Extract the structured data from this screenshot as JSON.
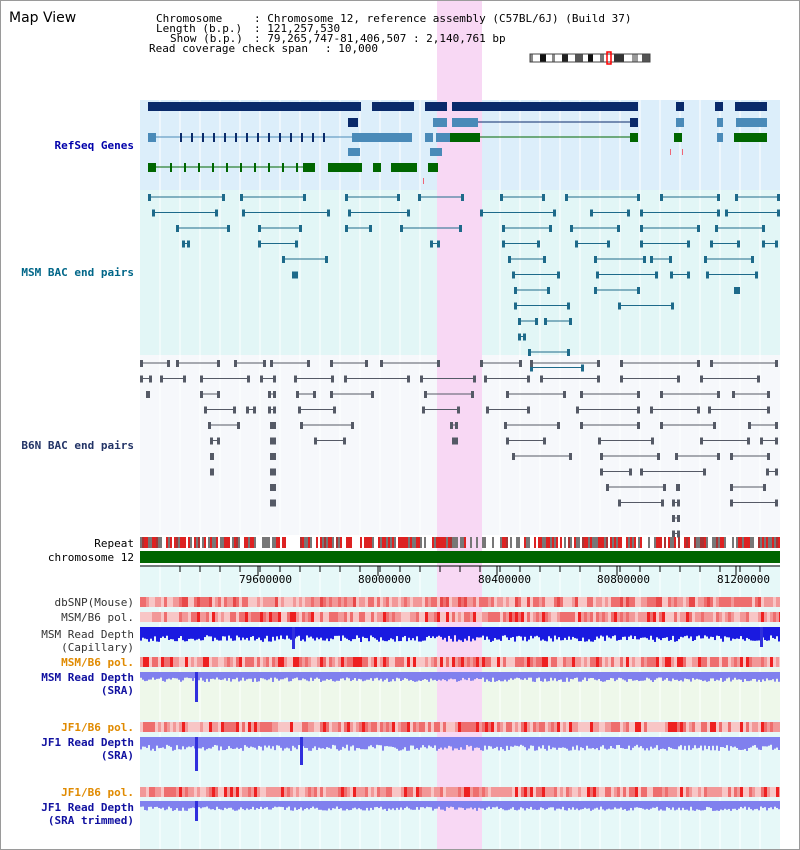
{
  "title": "Map View",
  "header": {
    "chromosome_label": "Chromosome    ",
    "chromosome_value": ": Chromosome 12, reference assembly (C57BL/6J) (Build 37)",
    "length_label": "Length (b.p.)",
    "length_value": ": 121,257,530",
    "show_label": "Show (b.p.)",
    "show_value": ": 79,265,747-81,406,507 : 2,140,761 bp",
    "coverage_label": "Read coverage check span",
    "coverage_value": ": 10,000"
  },
  "tracks": {
    "refseq": "RefSeq Genes",
    "msm_bac": "MSM BAC end pairs",
    "b6n_bac": "B6N BAC end pairs",
    "repeat": "Repeat",
    "chromosome": "chromosome 12",
    "dbsnp": "dbSNP(Mouse)",
    "msm_b6_pol": "MSM/B6 pol.",
    "msm_depth_cap_1": "MSM Read Depth",
    "msm_depth_cap_2": "(Capillary)",
    "msm_b6_pol_2": "MSM/B6 pol.",
    "msm_depth_sra_1": "MSM Read Depth",
    "msm_depth_sra_2": "(SRA)",
    "jf1_b6_pol": "JF1/B6 pol.",
    "jf1_depth_sra_1": "JF1 Read Depth",
    "jf1_depth_sra_2": "(SRA)",
    "jf1_b6_pol_2": "JF1/B6 pol.",
    "jf1_depth_trim_1": "JF1 Read Depth",
    "jf1_depth_trim_2": "(SRA trimmed)"
  },
  "scale": {
    "ticks": [
      "79600000",
      "80000000",
      "80400000",
      "80800000",
      "81200000"
    ]
  },
  "colors": {
    "refseq_label": "#0000aa",
    "msm_bac_label": "#006688",
    "b6n_bac_label": "#223366",
    "orange_label": "#e08a00",
    "blue_label": "#1010a0",
    "highlight": "#f8d8f4",
    "refseq_bg": "#dceefa",
    "msm_bg": "#e2f6f6",
    "gene_dark": "#0a2a6a",
    "gene_mid": "#4a8ab8",
    "gene_green": "#006600",
    "chrom_green": "#006400",
    "depth_blue": "#1a1ae0",
    "depth_light": "#8080ee"
  }
}
